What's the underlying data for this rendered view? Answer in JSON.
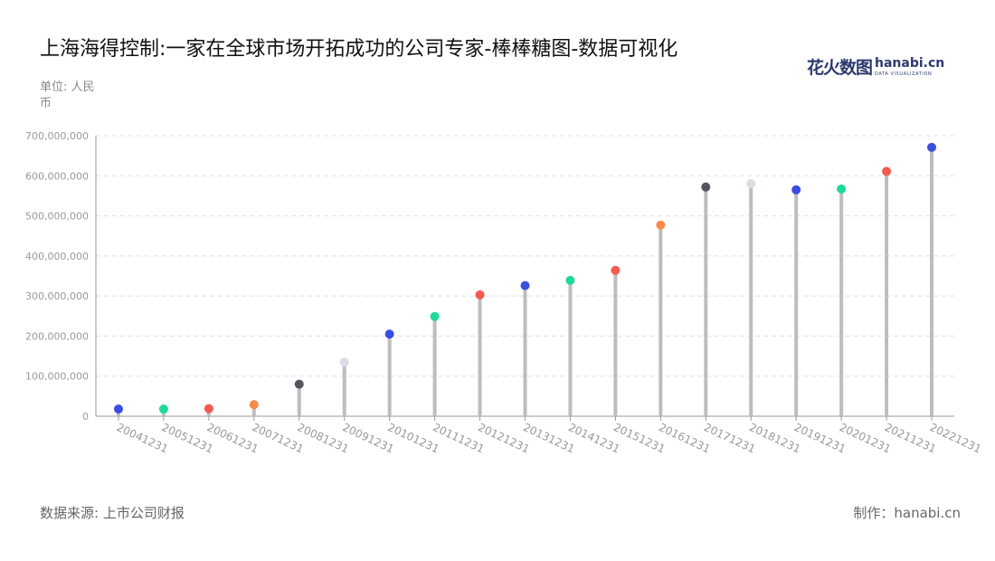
{
  "header": {
    "title": "上海海得控制:一家在全球市场开拓成功的公司专家-棒棒糖图-数据可视化",
    "unit": "单位: 人民币"
  },
  "brand": {
    "cn": "花火数图",
    "en": "hanabi.cn",
    "sub": "DATA VISUALIZATION"
  },
  "footer": {
    "source": "数据来源: 上市公司财报",
    "credit": "制作：hanabi.cn"
  },
  "colors": {
    "stem": "#bdbdbd",
    "grid": "#e0e0e0",
    "axis": "#999999",
    "tick_text": "#999999",
    "palette": [
      "#3a4fe0",
      "#1ed99a",
      "#f55a4e",
      "#f78b4b",
      "#55555f",
      "#dcdce6"
    ]
  },
  "chart_data": {
    "type": "lollipop",
    "categories": [
      "20041231",
      "20051231",
      "20061231",
      "20071231",
      "20081231",
      "20091231",
      "20101231",
      "20111231",
      "20121231",
      "20131231",
      "20141231",
      "20151231",
      "20161231",
      "20171231",
      "20181231",
      "20191231",
      "20201231",
      "20211231",
      "20221231"
    ],
    "values": [
      18000000,
      18000000,
      19000000,
      29000000,
      80000000,
      135000000,
      205000000,
      249000000,
      303000000,
      326000000,
      339000000,
      364000000,
      477000000,
      572000000,
      580000000,
      565000000,
      567000000,
      611000000,
      671000000
    ],
    "point_colors": [
      "#3a4fe0",
      "#1ed99a",
      "#f55a4e",
      "#f78b4b",
      "#55555f",
      "#dcdce6",
      "#3a4fe0",
      "#1ed99a",
      "#f55a4e",
      "#3a4fe0",
      "#1ed99a",
      "#f55a4e",
      "#f78b4b",
      "#55555f",
      "#dcdce6",
      "#3a4fe0",
      "#1ed99a",
      "#f55a4e",
      "#3a4fe0"
    ],
    "ylim": [
      0,
      700000000
    ],
    "yticks": [
      "0",
      "100,000,000",
      "200,000,000",
      "300,000,000",
      "400,000,000",
      "500,000,000",
      "600,000,000",
      "700,000,000"
    ],
    "grid": true
  }
}
